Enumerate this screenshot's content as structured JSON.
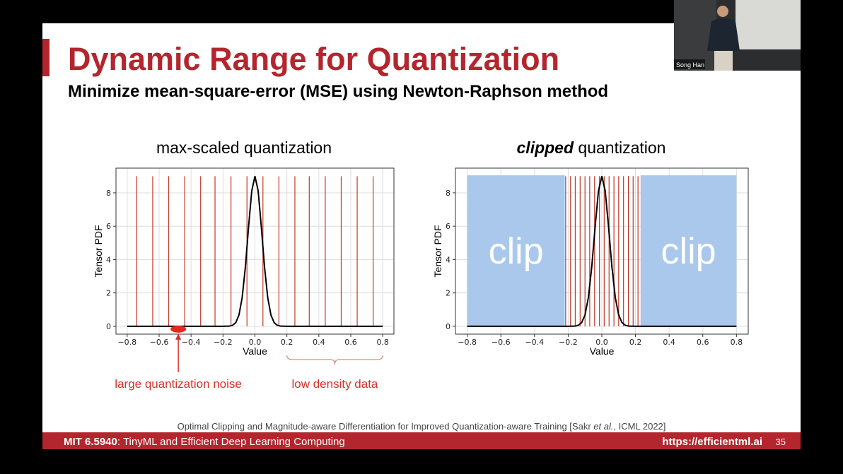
{
  "slide": {
    "title": "Dynamic Range for Quantization",
    "subtitle": "Minimize mean-square-error (MSE) using Newton-Raphson method",
    "citation": {
      "before": "Optimal Clipping and Magnitude-aware Differentiation for Improved Quantization-aware Training [Sakr ",
      "italic": "et al.",
      "after": ", ICML 2022]"
    },
    "footer": {
      "course": "MIT 6.5940",
      "course_rest": ": TinyML and Efficient Deep Learning Computing",
      "url": "https://efficientml.ai",
      "page": "35"
    },
    "speaker": "Song Han"
  },
  "chart_data": [
    {
      "type": "line",
      "title": "max-scaled quantization",
      "xlabel": "Value",
      "ylabel": "Tensor PDF",
      "xlim": [
        -0.87,
        0.87
      ],
      "ylim": [
        -0.47,
        9.48
      ],
      "xticks": [
        {
          "value": -0.8,
          "label": "−0.8"
        },
        {
          "value": -0.6,
          "label": "−0.6"
        },
        {
          "value": -0.4,
          "label": "−0.4"
        },
        {
          "value": -0.2,
          "label": "−0.2"
        },
        {
          "value": 0,
          "label": "0.0"
        },
        0.2,
        0.4,
        0.6,
        0.8
      ],
      "yticks": [
        0,
        2,
        4,
        6,
        8
      ],
      "grid": true,
      "x": [
        -0.8,
        -0.2,
        -0.16,
        -0.14,
        -0.12,
        -0.1,
        -0.08,
        -0.06,
        -0.04,
        -0.02,
        0,
        0.02,
        0.04,
        0.06,
        0.08,
        0.1,
        0.12,
        0.14,
        0.16,
        0.2,
        0.8
      ],
      "series": [
        {
          "color": "#000000",
          "values": [
            0,
            0,
            0.01,
            0.06,
            0.22,
            0.68,
            1.72,
            3.55,
            5.95,
            8.12,
            9,
            8.12,
            5.95,
            3.55,
            1.72,
            0.68,
            0.22,
            0.06,
            0.01,
            0,
            0
          ]
        }
      ],
      "quantization_levels": [
        -0.74,
        -0.64,
        -0.54,
        -0.44,
        -0.34,
        -0.25,
        -0.15,
        -0.05,
        0.05,
        0.15,
        0.25,
        0.34,
        0.44,
        0.54,
        0.64,
        0.74
      ],
      "level_color": "#c0392b",
      "line_top": 9,
      "annotations": [
        {
          "text": "large quantization noise",
          "x": -0.48
        },
        {
          "text": "low density data",
          "x_range": [
            0.2,
            0.8
          ]
        }
      ]
    },
    {
      "type": "line",
      "title": "clipped",
      "title_rest": " quantization",
      "xlabel": "Value",
      "ylabel": "Tensor PDF",
      "xlim": [
        -0.87,
        0.87
      ],
      "ylim": [
        -0.47,
        9.48
      ],
      "xticks": [
        {
          "value": -0.8,
          "label": "−0.8"
        },
        {
          "value": -0.6,
          "label": "−0.6"
        },
        {
          "value": -0.4,
          "label": "−0.4"
        },
        {
          "value": -0.2,
          "label": "−0.2"
        },
        {
          "value": 0,
          "label": "0.0"
        },
        0.2,
        0.4,
        0.6,
        0.8
      ],
      "yticks": [
        0,
        2,
        4,
        6,
        8
      ],
      "grid": true,
      "x": [
        -0.8,
        -0.2,
        -0.16,
        -0.14,
        -0.12,
        -0.1,
        -0.08,
        -0.06,
        -0.04,
        -0.02,
        0,
        0.02,
        0.04,
        0.06,
        0.08,
        0.1,
        0.12,
        0.14,
        0.16,
        0.2,
        0.8
      ],
      "series": [
        {
          "color": "#000000",
          "values": [
            0,
            0,
            0.01,
            0.06,
            0.22,
            0.68,
            1.72,
            3.55,
            5.95,
            8.12,
            9,
            8.12,
            5.95,
            3.55,
            1.72,
            0.68,
            0.22,
            0.06,
            0.01,
            0,
            0
          ]
        }
      ],
      "quantization_levels": [
        -0.215,
        -0.186,
        -0.158,
        -0.129,
        -0.1,
        -0.072,
        -0.043,
        -0.014,
        0.014,
        0.043,
        0.072,
        0.1,
        0.129,
        0.158,
        0.186,
        0.215
      ],
      "level_color": "#c0392b",
      "line_top": 9,
      "clip_regions": [
        {
          "label": "clip",
          "x": [
            -0.8,
            -0.22
          ]
        },
        {
          "label": "clip",
          "x": [
            0.23,
            0.8
          ]
        }
      ],
      "clip_color": "#a9c8ec",
      "clip_top": 9.05
    }
  ]
}
